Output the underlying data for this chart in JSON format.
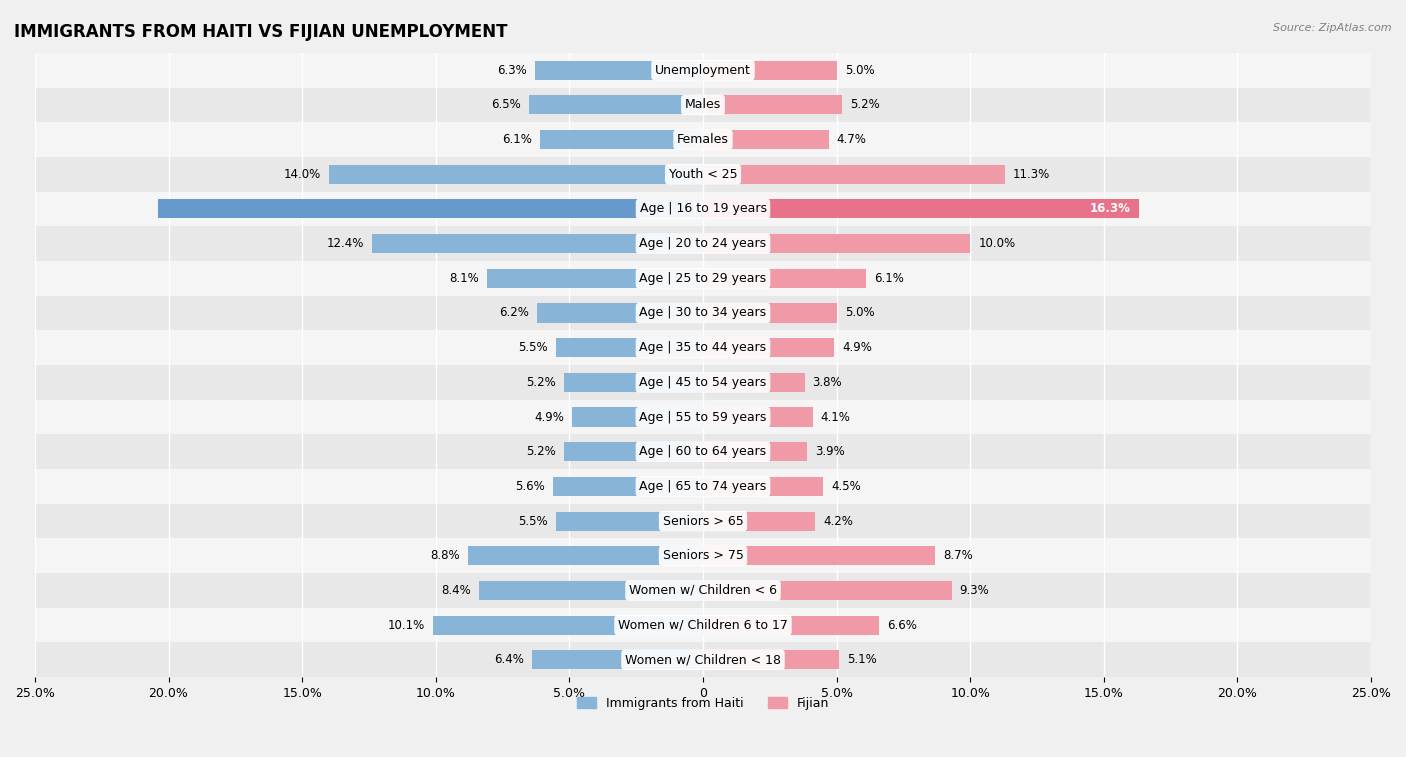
{
  "title": "IMMIGRANTS FROM HAITI VS FIJIAN UNEMPLOYMENT",
  "source": "Source: ZipAtlas.com",
  "categories": [
    "Unemployment",
    "Males",
    "Females",
    "Youth < 25",
    "Age | 16 to 19 years",
    "Age | 20 to 24 years",
    "Age | 25 to 29 years",
    "Age | 30 to 34 years",
    "Age | 35 to 44 years",
    "Age | 45 to 54 years",
    "Age | 55 to 59 years",
    "Age | 60 to 64 years",
    "Age | 65 to 74 years",
    "Seniors > 65",
    "Seniors > 75",
    "Women w/ Children < 6",
    "Women w/ Children 6 to 17",
    "Women w/ Children < 18"
  ],
  "haiti_values": [
    6.3,
    6.5,
    6.1,
    14.0,
    20.4,
    12.4,
    8.1,
    6.2,
    5.5,
    5.2,
    4.9,
    5.2,
    5.6,
    5.5,
    8.8,
    8.4,
    10.1,
    6.4
  ],
  "fijian_values": [
    5.0,
    5.2,
    4.7,
    11.3,
    16.3,
    10.0,
    6.1,
    5.0,
    4.9,
    3.8,
    4.1,
    3.9,
    4.5,
    4.2,
    8.7,
    9.3,
    6.6,
    5.1
  ],
  "haiti_color": "#88b4d8",
  "fijian_color": "#f09aa8",
  "haiti_color_dark": "#6699cc",
  "fijian_color_dark": "#e8728a",
  "dark_rows": [
    4
  ],
  "bar_height": 0.55,
  "xlim": [
    -25,
    25
  ],
  "x_ticks": [
    -25,
    -20,
    -15,
    -10,
    -5,
    0,
    5,
    10,
    15,
    20,
    25
  ],
  "x_tick_labels": [
    "25.0%",
    "20.0%",
    "15.0%",
    "10.0%",
    "5.0%",
    "0",
    "5.0%",
    "10.0%",
    "15.0%",
    "20.0%",
    "25.0%"
  ],
  "background_color": "#f0f0f0",
  "row_colors": [
    "#f5f5f5",
    "#e8e8e8"
  ],
  "label_fontsize": 9,
  "title_fontsize": 12,
  "value_fontsize": 8.5,
  "legend_labels": [
    "Immigrants from Haiti",
    "Fijian"
  ]
}
